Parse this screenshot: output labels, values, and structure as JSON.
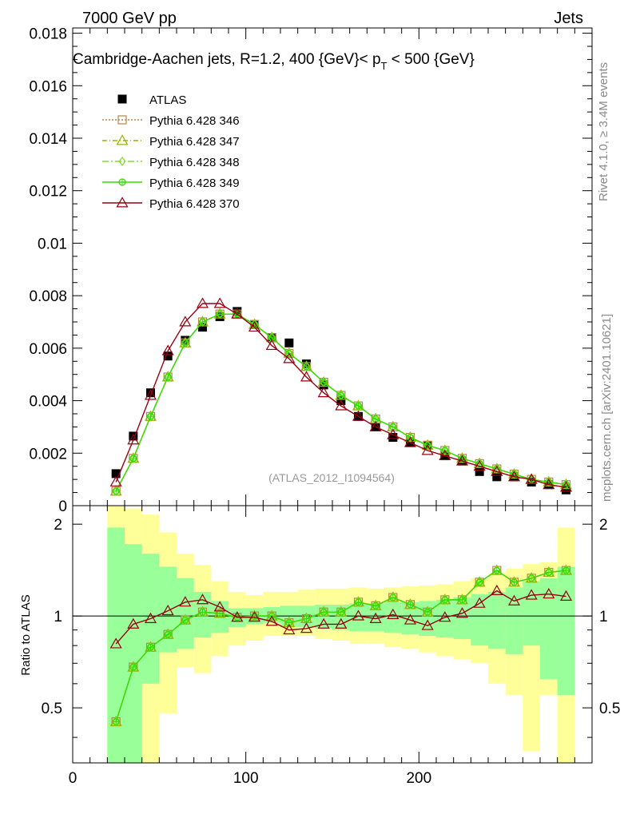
{
  "header": {
    "left": "7000 GeV pp",
    "right": "Jets"
  },
  "side_labels": {
    "rivet": "Rivet 4.1.0, ≥ 3.4M events",
    "mcplots": "mcplots.cern.ch [arXiv:2401.10621]"
  },
  "colors": {
    "atlas": "#000000",
    "p346": "#b8864b",
    "p347": "#9ab500",
    "p348": "#80e020",
    "p349": "#33dd00",
    "p370": "#990011",
    "band_yellow": "#ffff99",
    "band_green": "#99ff99"
  },
  "chart_data": [
    {
      "type": "line",
      "panel": "main",
      "title": "Cambridge-Aachen jets, R=1.2, 400 {GeV}< p_T < 500 {GeV}",
      "title_parts": {
        "pre": "Cambridge-Aachen jets, R=1.2, 400 {GeV}< p",
        "sub": "T",
        "post": " < 500 {GeV}"
      },
      "watermark": "(ATLAS_2012_I1094564)",
      "xlim": [
        0,
        300
      ],
      "ylim": [
        0,
        0.0182
      ],
      "yticks": [
        0,
        0.002,
        0.004,
        0.006,
        0.008,
        0.01,
        0.012,
        0.014,
        0.016,
        0.018
      ],
      "ytick_labels": [
        "0",
        "0.002",
        "0.004",
        "0.006",
        "0.008",
        "0.01",
        "0.012",
        "0.014",
        "0.016",
        "0.018"
      ],
      "x": [
        25,
        35,
        45,
        55,
        65,
        75,
        85,
        95,
        105,
        115,
        125,
        135,
        145,
        155,
        165,
        175,
        185,
        195,
        205,
        215,
        225,
        235,
        245,
        255,
        265,
        275,
        285
      ],
      "series": [
        {
          "name": "ATLAS",
          "key": "atlas",
          "marker": "square",
          "values": [
            0.00122,
            0.00265,
            0.0043,
            0.0057,
            0.0063,
            0.0068,
            0.0072,
            0.0074,
            0.0069,
            0.0064,
            0.0062,
            0.0054,
            0.0046,
            0.004,
            0.0034,
            0.003,
            0.0026,
            0.0024,
            0.0023,
            0.0019,
            0.0017,
            0.0013,
            0.0011,
            0.0011,
            0.0009,
            0.0008,
            0.0006
          ]
        },
        {
          "name": "Pythia 6.428 346",
          "key": "p346",
          "marker": "open-square",
          "dash": "2,2",
          "values": [
            0.00055,
            0.0018,
            0.0034,
            0.0049,
            0.0062,
            0.007,
            0.0073,
            0.0073,
            0.0069,
            0.0064,
            0.0058,
            0.0053,
            0.0047,
            0.0042,
            0.0038,
            0.0033,
            0.003,
            0.0026,
            0.0023,
            0.0021,
            0.0018,
            0.0016,
            0.0014,
            0.0012,
            0.001,
            0.0009,
            0.0008
          ]
        },
        {
          "name": "Pythia 6.428 347",
          "key": "p347",
          "marker": "open-triangle",
          "dash": "6,3,1,3",
          "values": [
            0.00055,
            0.0018,
            0.0034,
            0.0049,
            0.0062,
            0.007,
            0.0073,
            0.0073,
            0.0069,
            0.0064,
            0.0058,
            0.0053,
            0.0047,
            0.0042,
            0.0038,
            0.0033,
            0.003,
            0.0026,
            0.0023,
            0.0021,
            0.0018,
            0.0016,
            0.0014,
            0.0012,
            0.001,
            0.0009,
            0.0008
          ]
        },
        {
          "name": "Pythia 6.428 348",
          "key": "p348",
          "marker": "open-diamond",
          "dash": "8,3,2,3",
          "values": [
            0.00055,
            0.0018,
            0.0034,
            0.0049,
            0.0062,
            0.007,
            0.0073,
            0.0073,
            0.0069,
            0.0064,
            0.0058,
            0.0053,
            0.0047,
            0.0042,
            0.0038,
            0.0033,
            0.003,
            0.0026,
            0.0023,
            0.0021,
            0.0018,
            0.0016,
            0.0014,
            0.0012,
            0.001,
            0.0009,
            0.0008
          ]
        },
        {
          "name": "Pythia 6.428 349",
          "key": "p349",
          "marker": "open-circle-cross",
          "dash": "",
          "values": [
            0.00055,
            0.0018,
            0.0034,
            0.0049,
            0.0062,
            0.007,
            0.0073,
            0.0073,
            0.0069,
            0.0064,
            0.0058,
            0.0053,
            0.0047,
            0.0042,
            0.0038,
            0.0033,
            0.003,
            0.0026,
            0.0023,
            0.0021,
            0.0018,
            0.0016,
            0.0014,
            0.0012,
            0.001,
            0.0009,
            0.0008
          ]
        },
        {
          "name": "Pythia 6.428 370",
          "key": "p370",
          "marker": "open-triangle",
          "dash": "",
          "values": [
            0.0009,
            0.0025,
            0.0042,
            0.0059,
            0.007,
            0.0077,
            0.0077,
            0.0073,
            0.0068,
            0.0061,
            0.0056,
            0.0049,
            0.0043,
            0.0038,
            0.0034,
            0.003,
            0.0027,
            0.0024,
            0.0021,
            0.0019,
            0.0017,
            0.0015,
            0.0013,
            0.0011,
            0.001,
            0.0008,
            0.0007
          ]
        }
      ]
    },
    {
      "type": "line",
      "panel": "ratio",
      "ylabel": "Ratio to ATLAS",
      "xlim": [
        0,
        300
      ],
      "ylim": [
        0.33,
        2.3
      ],
      "xticks": [
        0,
        100,
        200
      ],
      "xtick_labels": [
        "0",
        "100",
        "200"
      ],
      "yticks": [
        0.5,
        1,
        2
      ],
      "ytick_labels": [
        "0.5",
        "1",
        "2"
      ],
      "bin_edges": [
        20,
        30,
        40,
        50,
        60,
        70,
        80,
        90,
        100,
        110,
        120,
        130,
        140,
        150,
        160,
        170,
        180,
        190,
        200,
        210,
        220,
        230,
        240,
        250,
        260,
        270,
        280,
        290
      ],
      "band_yellow": {
        "lo": [
          0.2,
          0.2,
          0.2,
          0.48,
          0.68,
          0.65,
          0.74,
          0.8,
          0.83,
          0.86,
          0.86,
          0.86,
          0.84,
          0.83,
          0.81,
          0.81,
          0.79,
          0.78,
          0.76,
          0.74,
          0.72,
          0.7,
          0.6,
          0.55,
          0.36,
          0.55,
          0.2
        ],
        "hi": [
          2.5,
          2.25,
          2.15,
          1.88,
          1.6,
          1.47,
          1.3,
          1.2,
          1.17,
          1.2,
          1.2,
          1.22,
          1.23,
          1.23,
          1.24,
          1.23,
          1.24,
          1.25,
          1.26,
          1.27,
          1.3,
          1.33,
          1.38,
          1.43,
          1.48,
          1.5,
          1.95
        ]
      },
      "band_green": {
        "lo": [
          0.2,
          0.2,
          0.6,
          0.76,
          0.78,
          0.85,
          0.88,
          0.92,
          0.94,
          0.95,
          0.92,
          0.92,
          0.91,
          0.9,
          0.89,
          0.89,
          0.88,
          0.87,
          0.86,
          0.85,
          0.84,
          0.8,
          0.78,
          0.75,
          0.8,
          0.62,
          0.55
        ],
        "hi": [
          1.95,
          1.72,
          1.6,
          1.45,
          1.33,
          1.2,
          1.12,
          1.06,
          1.06,
          1.07,
          1.08,
          1.08,
          1.09,
          1.09,
          1.1,
          1.1,
          1.11,
          1.11,
          1.12,
          1.13,
          1.15,
          1.18,
          1.2,
          1.24,
          1.3,
          1.33,
          1.45
        ]
      },
      "reference_line": 1,
      "x": [
        25,
        35,
        45,
        55,
        65,
        75,
        85,
        95,
        105,
        115,
        125,
        135,
        145,
        155,
        165,
        175,
        185,
        195,
        205,
        215,
        225,
        235,
        245,
        255,
        265,
        275,
        285
      ],
      "series": [
        {
          "name": "Pythia 6.428 346",
          "key": "p346",
          "marker": "open-square",
          "dash": "2,2",
          "values": [
            0.45,
            0.68,
            0.79,
            0.87,
            0.97,
            1.03,
            1.02,
            0.99,
            1.0,
            1.0,
            0.95,
            0.98,
            1.03,
            1.03,
            1.11,
            1.08,
            1.15,
            1.09,
            1.03,
            1.13,
            1.13,
            1.29,
            1.41,
            1.29,
            1.33,
            1.39,
            1.41
          ]
        },
        {
          "name": "Pythia 6.428 347",
          "key": "p347",
          "marker": "open-triangle",
          "dash": "6,3,1,3",
          "values": [
            0.45,
            0.68,
            0.79,
            0.87,
            0.97,
            1.03,
            1.02,
            0.99,
            1.0,
            1.0,
            0.95,
            0.98,
            1.03,
            1.03,
            1.11,
            1.08,
            1.15,
            1.09,
            1.03,
            1.13,
            1.13,
            1.29,
            1.41,
            1.29,
            1.33,
            1.39,
            1.41
          ]
        },
        {
          "name": "Pythia 6.428 348",
          "key": "p348",
          "marker": "open-diamond",
          "dash": "8,3,2,3",
          "values": [
            0.45,
            0.68,
            0.79,
            0.87,
            0.97,
            1.03,
            1.02,
            0.99,
            1.0,
            1.0,
            0.95,
            0.98,
            1.03,
            1.03,
            1.11,
            1.08,
            1.15,
            1.09,
            1.03,
            1.13,
            1.13,
            1.29,
            1.41,
            1.29,
            1.33,
            1.39,
            1.41
          ]
        },
        {
          "name": "Pythia 6.428 349",
          "key": "p349",
          "marker": "open-circle-cross",
          "dash": "",
          "values": [
            0.45,
            0.68,
            0.79,
            0.87,
            0.97,
            1.03,
            1.02,
            0.99,
            1.0,
            1.0,
            0.95,
            0.98,
            1.03,
            1.03,
            1.11,
            1.08,
            1.15,
            1.09,
            1.03,
            1.13,
            1.13,
            1.29,
            1.41,
            1.29,
            1.33,
            1.39,
            1.41
          ]
        },
        {
          "name": "Pythia 6.428 370",
          "key": "p370",
          "marker": "open-triangle",
          "dash": "",
          "values": [
            0.81,
            0.94,
            0.98,
            1.04,
            1.11,
            1.13,
            1.07,
            0.99,
            0.99,
            0.96,
            0.9,
            0.91,
            0.94,
            0.94,
            1.0,
            0.98,
            1.01,
            0.97,
            0.93,
            0.99,
            1.02,
            1.1,
            1.21,
            1.12,
            1.17,
            1.18,
            1.16
          ]
        }
      ]
    }
  ]
}
